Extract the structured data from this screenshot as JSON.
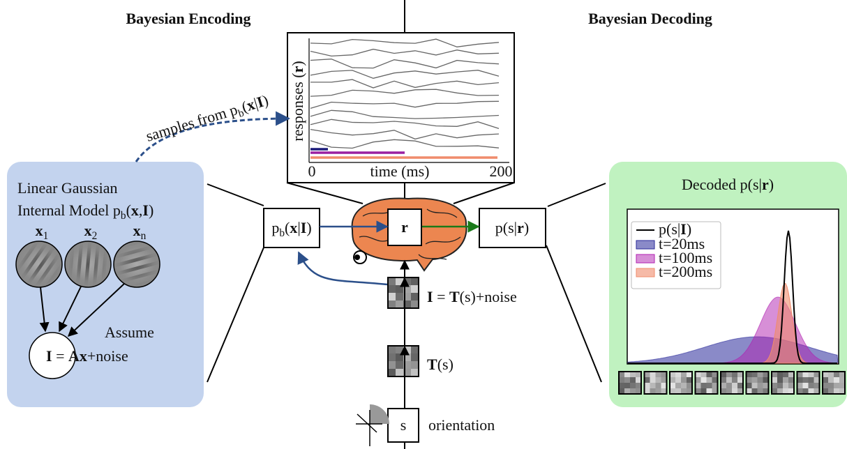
{
  "header": {
    "encoding": "Bayesian Encoding",
    "decoding": "Bayesian Decoding"
  },
  "raster": {
    "y_label": [
      "responses (",
      "r",
      ")"
    ],
    "x_label": "time (ms)",
    "t_start": "0",
    "t_end": "200"
  },
  "samples_label": [
    "samples from p",
    "b",
    "(",
    "x",
    "|",
    "I",
    ")"
  ],
  "encoding_panel": {
    "line1": "Linear Gaussian",
    "line2": [
      "Internal Model p",
      "b",
      "(",
      "x",
      ",",
      "I",
      ")"
    ],
    "latents": [
      [
        "x",
        "1"
      ],
      [
        "x",
        "2"
      ],
      [
        "x",
        "n"
      ]
    ],
    "assume": "Assume",
    "equation": [
      "I",
      " = ",
      "Ax",
      "+noise"
    ]
  },
  "nodes": {
    "posterior": [
      "p",
      "b",
      "(",
      "x",
      "|",
      "I",
      ")"
    ],
    "responses": "r",
    "decoder": [
      "p(s|",
      "r",
      ")"
    ],
    "image": [
      "I",
      " = ",
      "T",
      "(s)+noise"
    ],
    "template": [
      "T",
      "(s)"
    ],
    "stimulus": "s",
    "stimulus_label": "orientation"
  },
  "decoding_panel": {
    "title": [
      "Decoded p(s|",
      "r",
      ")"
    ],
    "legend": [
      [
        "p(s|",
        "I",
        ")"
      ],
      "t=20ms",
      "t=100ms",
      "t=200ms"
    ]
  }
}
